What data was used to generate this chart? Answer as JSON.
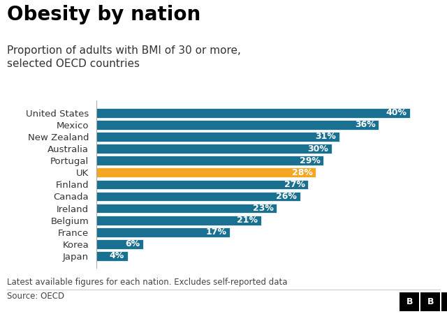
{
  "title": "Obesity by nation",
  "subtitle": "Proportion of adults with BMI of 30 or more,\nselected OECD countries",
  "footer_note": "Latest available figures for each nation. Excludes self-reported data",
  "source": "Source: OECD",
  "countries": [
    "United States",
    "Mexico",
    "New Zealand",
    "Australia",
    "Portugal",
    "UK",
    "Finland",
    "Canada",
    "Ireland",
    "Belgium",
    "France",
    "Korea",
    "Japan"
  ],
  "values": [
    40,
    36,
    31,
    30,
    29,
    28,
    27,
    26,
    23,
    21,
    17,
    6,
    4
  ],
  "highlight_country": "UK",
  "bar_color_default": "#1a7090",
  "bar_color_highlight": "#f5a623",
  "label_color_inside": "#ffffff",
  "background_color": "#ffffff",
  "xlim": [
    0,
    43
  ],
  "title_fontsize": 20,
  "subtitle_fontsize": 11,
  "label_fontsize": 9,
  "tick_fontsize": 9.5,
  "footer_fontsize": 8.5
}
